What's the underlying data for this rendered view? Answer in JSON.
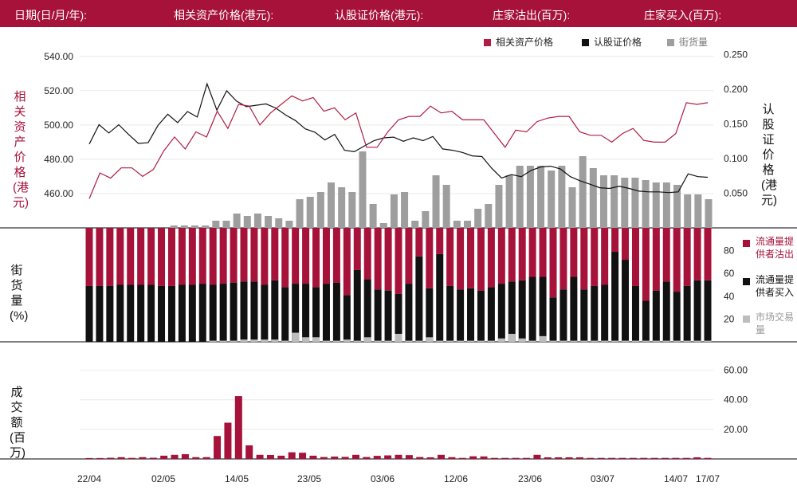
{
  "header": {
    "date_label": "日期(日/月/年):",
    "asset_price_label": "相关资产价格(港元):",
    "warrant_price_label": "认股证价格(港元):",
    "mm_sell_label": "庄家沽出(百万):",
    "mm_buy_label": "庄家买入(百万):"
  },
  "legend": {
    "asset_price": "相关资产价格",
    "warrant_price": "认股证价格",
    "outstanding": "街货量"
  },
  "axis_labels": {
    "left_top": "相关资产价格(港元)",
    "right_top": "认股证价格(港元)",
    "left_mid": "街货量(%)",
    "left_bottom": "成交额(百万)"
  },
  "side_legend": {
    "mm_sell": "流通量提供者沽出",
    "mm_buy": "流通量提供者买入",
    "market": "市场交易量"
  },
  "colors": {
    "brand": "#a6123a",
    "asset_line": "#b01c44",
    "warrant_line": "#111111",
    "outstanding": "#9e9e9e",
    "market": "#bdbdbd"
  },
  "chart_data": {
    "type": "line",
    "x_ticks": [
      "22/04",
      "02/05",
      "14/05",
      "23/05",
      "03/06",
      "12/06",
      "23/06",
      "03/07",
      "14/07",
      "17/07"
    ],
    "asset_price": {
      "ylim": [
        440,
        545
      ],
      "ticks": [
        "540.00",
        "520.00",
        "500.00",
        "480.00",
        "460.00"
      ],
      "values": [
        457,
        472,
        469,
        475,
        475,
        470,
        474,
        485,
        493,
        486,
        496,
        493,
        508,
        498,
        512,
        511,
        500,
        507,
        512,
        517,
        514,
        516,
        508,
        510,
        503,
        507,
        487,
        487,
        496,
        503,
        505,
        505,
        511,
        507,
        508,
        503,
        503,
        503,
        495,
        487,
        497,
        496,
        502,
        504,
        505,
        505,
        496,
        494,
        494,
        490,
        495,
        498,
        491,
        490,
        490,
        495,
        513,
        512,
        513
      ]
    },
    "warrant_price": {
      "ylim": [
        0,
        0.26
      ],
      "ticks": [
        "0.250",
        "0.200",
        "0.150",
        "0.100",
        "0.050"
      ],
      "values": [
        0.121,
        0.149,
        0.137,
        0.149,
        0.135,
        0.122,
        0.123,
        0.148,
        0.164,
        0.152,
        0.168,
        0.16,
        0.208,
        0.17,
        0.198,
        0.183,
        0.175,
        0.177,
        0.179,
        0.173,
        0.163,
        0.155,
        0.143,
        0.138,
        0.127,
        0.135,
        0.112,
        0.11,
        0.118,
        0.126,
        0.13,
        0.131,
        0.125,
        0.13,
        0.126,
        0.132,
        0.114,
        0.112,
        0.109,
        0.104,
        0.103,
        0.086,
        0.072,
        0.077,
        0.074,
        0.083,
        0.088,
        0.089,
        0.085,
        0.074,
        0.068,
        0.063,
        0.058,
        0.057,
        0.06,
        0.057,
        0.053,
        0.052,
        0.052,
        0.051,
        0.052,
        0.078,
        0.074,
        0.073
      ]
    },
    "outstanding": {
      "values": [
        0,
        0,
        0,
        0,
        0,
        0,
        0,
        0,
        1,
        1,
        1,
        1,
        3,
        3,
        6,
        5,
        6,
        5,
        4,
        3,
        12,
        13,
        15,
        19,
        17,
        15,
        32,
        10,
        2,
        14,
        15,
        3,
        7,
        22,
        18,
        3,
        3,
        8,
        10,
        18,
        22,
        26,
        26,
        26,
        24,
        26,
        17,
        30,
        25,
        22,
        22,
        21,
        21,
        20,
        19,
        19,
        18,
        14,
        14,
        12
      ]
    },
    "mm_share": {
      "ylim": [
        0,
        100
      ],
      "ticks": [
        "80",
        "60",
        "40",
        "20"
      ],
      "sell": [
        51,
        51,
        51,
        50,
        50,
        50,
        50,
        51,
        51,
        50,
        50,
        49,
        50,
        49,
        48,
        47,
        47,
        50,
        46,
        52,
        49,
        49,
        52,
        49,
        48,
        59,
        37,
        45,
        54,
        55,
        58,
        49,
        25,
        53,
        23,
        51,
        54,
        53,
        55,
        52,
        49,
        47,
        46,
        43,
        43,
        61,
        54,
        43,
        54,
        51,
        50,
        21,
        28,
        51,
        64,
        55,
        47,
        56,
        51,
        46,
        46
      ],
      "buy": [
        49,
        49,
        49,
        50,
        50,
        50,
        50,
        49,
        49,
        50,
        50,
        51,
        50,
        51,
        52,
        53,
        53,
        50,
        54,
        48,
        51,
        51,
        48,
        51,
        52,
        41,
        63,
        55,
        46,
        45,
        42,
        51,
        75,
        47,
        77,
        49,
        46,
        47,
        45,
        48,
        51,
        53,
        54,
        57,
        57,
        39,
        46,
        57,
        46,
        49,
        50,
        79,
        72,
        49,
        36,
        45,
        53,
        44,
        49,
        54,
        54
      ],
      "market": [
        0,
        0,
        0,
        0,
        0,
        0,
        0,
        0,
        0,
        0,
        0,
        0,
        1,
        1,
        1,
        2,
        2,
        2,
        2,
        1,
        8,
        4,
        4,
        1,
        1,
        2,
        1,
        4,
        1,
        1,
        7,
        1,
        1,
        4,
        1,
        1,
        1,
        1,
        1,
        1,
        3,
        7,
        3,
        1,
        5,
        1,
        1,
        1,
        1,
        1,
        1,
        1,
        1,
        1,
        1,
        1,
        1,
        1,
        1,
        1,
        1
      ]
    },
    "turnover": {
      "ylim": [
        0,
        70
      ],
      "ticks": [
        "60.00",
        "40.00",
        "20.00"
      ],
      "values": [
        0.6,
        0.6,
        0.8,
        1.2,
        0.7,
        1.2,
        0.8,
        2.2,
        2.8,
        3.2,
        1.2,
        1.2,
        15.5,
        24.5,
        42.5,
        9.2,
        2.8,
        2.7,
        2.2,
        4.5,
        4.2,
        2.2,
        1.3,
        1.6,
        1.4,
        2.8,
        1.3,
        2.1,
        2.4,
        2.8,
        2.6,
        1.3,
        1.1,
        2.8,
        1.2,
        0.7,
        1.8,
        1.7,
        0.7,
        0.7,
        0.7,
        0.7,
        2.8,
        1.1,
        1.1,
        1.1,
        1.1,
        0.7,
        0.7,
        0.7,
        0.7,
        0.7,
        0.7,
        0.7,
        0.7,
        0.7,
        0.7,
        1.1,
        0.7
      ]
    }
  }
}
